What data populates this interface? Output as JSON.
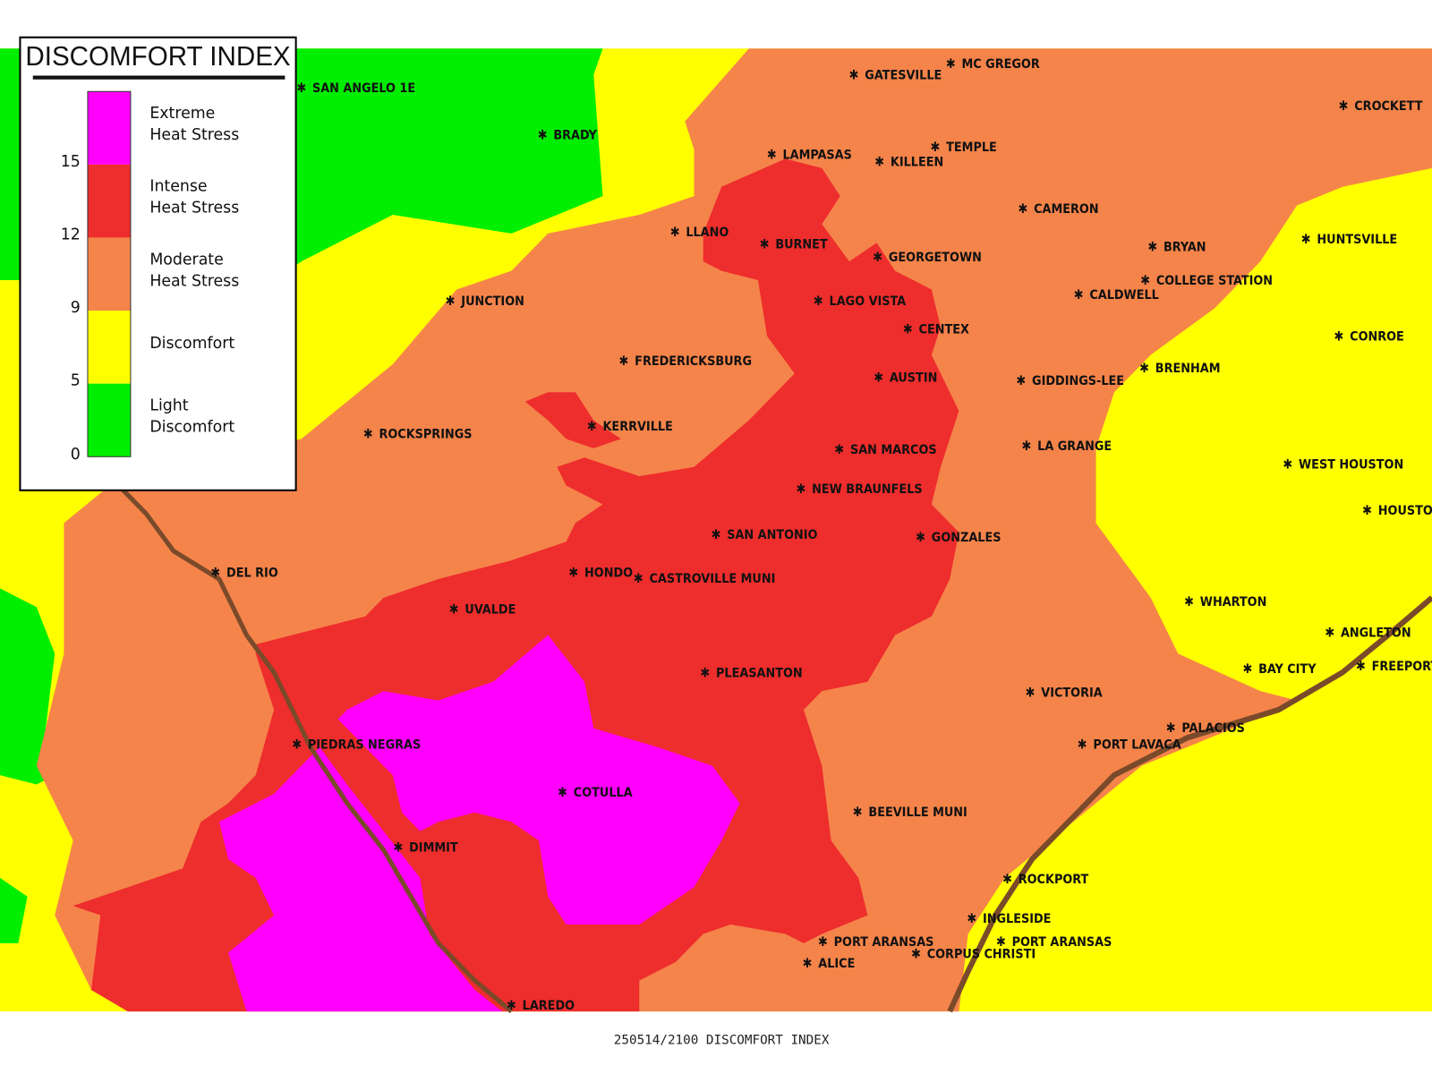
{
  "legend": {
    "title": "DISCOMFORT INDEX",
    "items": [
      {
        "lines": [
          "Extreme",
          "Heat Stress"
        ],
        "color": "#ff00ff"
      },
      {
        "lines": [
          "Intense",
          "Heat Stress"
        ],
        "color": "#ee2d2d"
      },
      {
        "lines": [
          "Moderate",
          "Heat Stress"
        ],
        "color": "#f5844a"
      },
      {
        "lines": [
          "Discomfort"
        ],
        "color": "#ffff00"
      },
      {
        "lines": [
          "Light",
          "Discomfort"
        ],
        "color": "#00ee00"
      }
    ],
    "ticks": [
      15,
      12,
      9,
      5,
      0
    ]
  },
  "cities": [
    "SAN ANGELO 1E",
    "BRADY",
    "GATESVILLE",
    "MC GREGOR",
    "CROCKETT",
    "LAMPASAS",
    "KILLEEN",
    "TEMPLE",
    "CAMERON",
    "LLANO",
    "BURNET",
    "GEORGETOWN",
    "BRYAN",
    "HUNTSVILLE",
    "COLLEGE STATION",
    "CALDWELL",
    "JUNCTION",
    "LAGO VISTA",
    "CENTEX",
    "CONROE",
    "FREDERICKSBURG",
    "BRENHAM",
    "AUSTIN",
    "GIDDINGS-LEE",
    "KERRVILLE",
    "ROCKSPRINGS",
    "LA GRANGE",
    "SAN MARCOS",
    "WEST HOUSTON",
    "NEW BRAUNFELS",
    "HOUSTON",
    "SAN ANTONIO",
    "GONZALES",
    "DEL RIO",
    "HONDO",
    "CASTROVILLE MUNI",
    "WHARTON",
    "UVALDE",
    "ANGLETON",
    "FREEPORT",
    "BAY CITY",
    "PLEASANTON",
    "VICTORIA",
    "PALACIOS",
    "PORT LAVACA",
    "PIEDRAS NEGRAS",
    "COTULLA",
    "BEEVILLE MUNI",
    "DIMMIT",
    "ROCKPORT",
    "INGLESIDE",
    "PORT ARANSAS",
    "PORT ARANSAS",
    "CORPUS CHRISTI",
    "ALICE",
    "LAREDO"
  ],
  "caption": "250514/2100 DISCOMFORT INDEX"
}
